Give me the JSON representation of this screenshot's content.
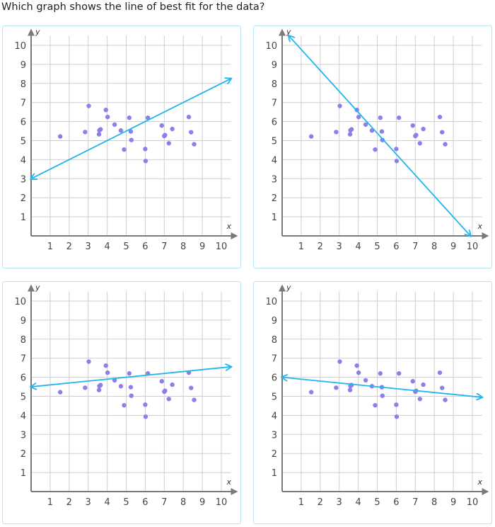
{
  "question": "Which graph shows the line of best fit for the data?",
  "colors": {
    "line": "#1fb5ee",
    "point": "#8b80e9",
    "grid": "#cfcfcf",
    "axis": "#7a7a7a",
    "border": "#b5e6f7"
  },
  "chart_data": [
    {
      "type": "scatter",
      "xlabel": "x",
      "ylabel": "y",
      "xlim": [
        0,
        10.5
      ],
      "ylim": [
        0,
        10.5
      ],
      "grid": true,
      "x_ticks": [
        "1",
        "2",
        "3",
        "4",
        "5",
        "6",
        "7",
        "8",
        "9",
        "10"
      ],
      "y_ticks": [
        "1",
        "2",
        "3",
        "4",
        "5",
        "6",
        "7",
        "8",
        "9",
        "10"
      ],
      "line": {
        "x1": 0,
        "y1": 3,
        "x2": 10.5,
        "y2": 8.25
      },
      "points": [
        [
          1.53,
          5.22
        ],
        [
          2.84,
          5.45
        ],
        [
          3.03,
          6.82
        ],
        [
          3.57,
          5.33
        ],
        [
          3.59,
          5.54
        ],
        [
          3.65,
          5.59
        ],
        [
          3.93,
          6.61
        ],
        [
          4.02,
          6.24
        ],
        [
          4.39,
          5.84
        ],
        [
          4.72,
          5.53
        ],
        [
          4.89,
          4.53
        ],
        [
          5.16,
          6.2
        ],
        [
          5.24,
          5.48
        ],
        [
          5.27,
          5.03
        ],
        [
          6.0,
          4.56
        ],
        [
          6.02,
          3.93
        ],
        [
          6.14,
          6.2
        ],
        [
          6.87,
          5.79
        ],
        [
          7.0,
          5.24
        ],
        [
          7.04,
          5.29
        ],
        [
          7.24,
          4.86
        ],
        [
          7.42,
          5.61
        ],
        [
          8.29,
          6.24
        ],
        [
          8.41,
          5.44
        ],
        [
          8.57,
          4.81
        ]
      ]
    },
    {
      "type": "scatter",
      "xlabel": "x",
      "ylabel": "y",
      "xlim": [
        0,
        10.5
      ],
      "ylim": [
        0,
        10.5
      ],
      "grid": true,
      "x_ticks": [
        "1",
        "2",
        "3",
        "4",
        "5",
        "6",
        "7",
        "8",
        "9",
        "10"
      ],
      "y_ticks": [
        "1",
        "2",
        "3",
        "4",
        "5",
        "6",
        "7",
        "8",
        "9",
        "10"
      ],
      "line": {
        "x1": 0.35,
        "y1": 10.5,
        "x2": 9.9,
        "y2": 0
      },
      "points": [
        [
          1.53,
          5.22
        ],
        [
          2.84,
          5.45
        ],
        [
          3.03,
          6.82
        ],
        [
          3.57,
          5.33
        ],
        [
          3.59,
          5.54
        ],
        [
          3.65,
          5.59
        ],
        [
          3.93,
          6.61
        ],
        [
          4.02,
          6.24
        ],
        [
          4.39,
          5.84
        ],
        [
          4.72,
          5.53
        ],
        [
          4.89,
          4.53
        ],
        [
          5.16,
          6.2
        ],
        [
          5.24,
          5.48
        ],
        [
          5.27,
          5.03
        ],
        [
          6.0,
          4.56
        ],
        [
          6.02,
          3.93
        ],
        [
          6.14,
          6.2
        ],
        [
          6.87,
          5.79
        ],
        [
          7.0,
          5.24
        ],
        [
          7.04,
          5.29
        ],
        [
          7.24,
          4.86
        ],
        [
          7.42,
          5.61
        ],
        [
          8.29,
          6.24
        ],
        [
          8.41,
          5.44
        ],
        [
          8.57,
          4.81
        ]
      ]
    },
    {
      "type": "scatter",
      "xlabel": "x",
      "ylabel": "y",
      "xlim": [
        0,
        10.5
      ],
      "ylim": [
        0,
        10.5
      ],
      "grid": true,
      "x_ticks": [
        "1",
        "2",
        "3",
        "4",
        "5",
        "6",
        "7",
        "8",
        "9",
        "10"
      ],
      "y_ticks": [
        "1",
        "2",
        "3",
        "4",
        "5",
        "6",
        "7",
        "8",
        "9",
        "10"
      ],
      "line": {
        "x1": 0,
        "y1": 5.5,
        "x2": 10.5,
        "y2": 6.55
      },
      "points": [
        [
          1.53,
          5.22
        ],
        [
          2.84,
          5.45
        ],
        [
          3.03,
          6.82
        ],
        [
          3.57,
          5.33
        ],
        [
          3.59,
          5.54
        ],
        [
          3.65,
          5.59
        ],
        [
          3.93,
          6.61
        ],
        [
          4.02,
          6.24
        ],
        [
          4.39,
          5.84
        ],
        [
          4.72,
          5.53
        ],
        [
          4.89,
          4.53
        ],
        [
          5.16,
          6.2
        ],
        [
          5.24,
          5.48
        ],
        [
          5.27,
          5.03
        ],
        [
          6.0,
          4.56
        ],
        [
          6.02,
          3.93
        ],
        [
          6.14,
          6.2
        ],
        [
          6.87,
          5.79
        ],
        [
          7.0,
          5.24
        ],
        [
          7.04,
          5.29
        ],
        [
          7.24,
          4.86
        ],
        [
          7.42,
          5.61
        ],
        [
          8.29,
          6.24
        ],
        [
          8.41,
          5.44
        ],
        [
          8.57,
          4.81
        ]
      ]
    },
    {
      "type": "scatter",
      "xlabel": "x",
      "ylabel": "y",
      "xlim": [
        0,
        10.5
      ],
      "ylim": [
        0,
        10.5
      ],
      "grid": true,
      "x_ticks": [
        "1",
        "2",
        "3",
        "4",
        "5",
        "6",
        "7",
        "8",
        "9",
        "10"
      ],
      "y_ticks": [
        "1",
        "2",
        "3",
        "4",
        "5",
        "6",
        "7",
        "8",
        "9",
        "10"
      ],
      "line": {
        "x1": 0,
        "y1": 6.0,
        "x2": 10.5,
        "y2": 4.95
      },
      "points": [
        [
          1.53,
          5.22
        ],
        [
          2.84,
          5.45
        ],
        [
          3.03,
          6.82
        ],
        [
          3.57,
          5.33
        ],
        [
          3.59,
          5.54
        ],
        [
          3.65,
          5.59
        ],
        [
          3.93,
          6.61
        ],
        [
          4.02,
          6.24
        ],
        [
          4.39,
          5.84
        ],
        [
          4.72,
          5.53
        ],
        [
          4.89,
          4.53
        ],
        [
          5.16,
          6.2
        ],
        [
          5.24,
          5.48
        ],
        [
          5.27,
          5.03
        ],
        [
          6.0,
          4.56
        ],
        [
          6.02,
          3.93
        ],
        [
          6.14,
          6.2
        ],
        [
          6.87,
          5.79
        ],
        [
          7.0,
          5.24
        ],
        [
          7.04,
          5.29
        ],
        [
          7.24,
          4.86
        ],
        [
          7.42,
          5.61
        ],
        [
          8.29,
          6.24
        ],
        [
          8.41,
          5.44
        ],
        [
          8.57,
          4.81
        ]
      ]
    }
  ]
}
